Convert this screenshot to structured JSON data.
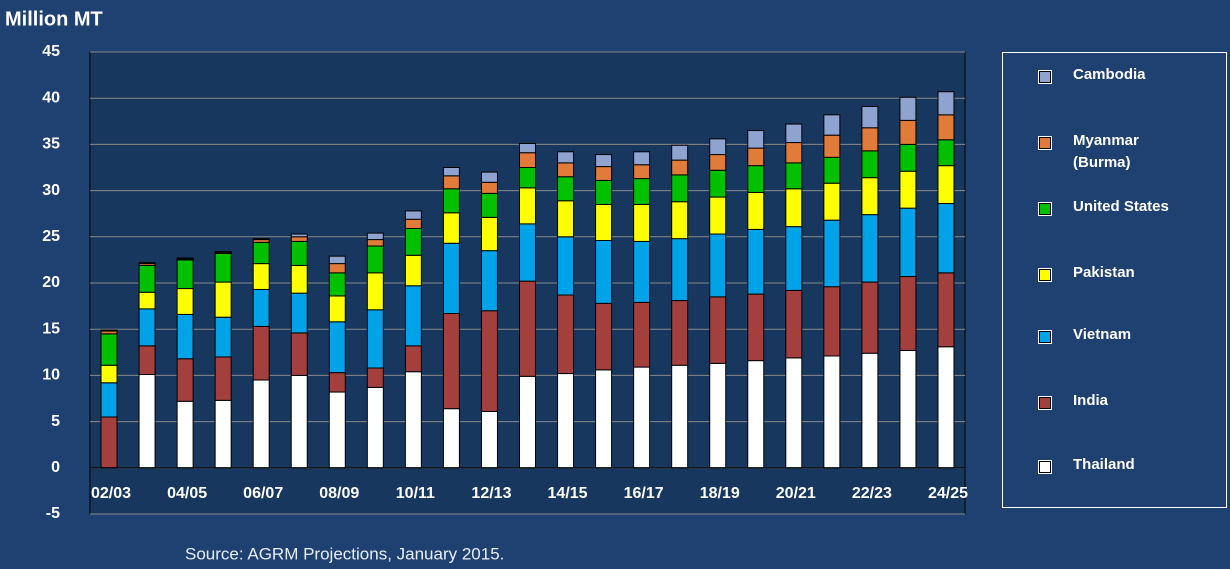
{
  "chart_data": {
    "type": "stacked_bar",
    "y_label": "Million MT",
    "source": "Source: AGRM Projections, January 2015.",
    "categories": [
      "02/03",
      null,
      "04/05",
      null,
      "06/07",
      null,
      "08/09",
      null,
      "10/11",
      null,
      "12/13",
      null,
      "14/15",
      null,
      "16/17",
      null,
      "18/19",
      null,
      "20/21",
      null,
      "22/23",
      null,
      "24/25"
    ],
    "series": [
      {
        "name": "Thailand",
        "color": "#ffffff",
        "values": [
          0,
          10.1,
          7.2,
          7.3,
          9.5,
          10.0,
          8.2,
          8.7,
          10.4,
          6.4,
          6.1,
          9.9,
          10.2,
          10.6,
          10.9,
          11.1,
          11.3,
          11.6,
          11.9,
          12.1,
          12.4,
          12.7,
          13.1
        ]
      },
      {
        "name": "India",
        "color": "#a3403d",
        "values": [
          5.5,
          3.1,
          4.6,
          4.7,
          5.8,
          4.6,
          2.1,
          2.1,
          2.8,
          10.3,
          10.9,
          10.3,
          8.5,
          7.2,
          7.0,
          7.0,
          7.2,
          7.2,
          7.3,
          7.5,
          7.7,
          8.0,
          8.0
        ]
      },
      {
        "name": "Vietnam",
        "color": "#00a2e8",
        "values": [
          3.7,
          4.0,
          4.8,
          4.3,
          4.0,
          4.3,
          5.5,
          6.3,
          6.5,
          7.6,
          6.5,
          6.2,
          6.3,
          6.8,
          6.6,
          6.7,
          6.8,
          7.0,
          6.9,
          7.2,
          7.3,
          7.4,
          7.5
        ]
      },
      {
        "name": "Pakistan",
        "color": "#ffff00",
        "values": [
          1.9,
          1.8,
          2.8,
          3.8,
          2.8,
          3.0,
          2.8,
          4.0,
          3.3,
          3.3,
          3.6,
          3.9,
          3.9,
          3.9,
          4.0,
          4.0,
          4.0,
          4.0,
          4.1,
          4.0,
          4.0,
          4.0,
          4.1
        ]
      },
      {
        "name": "United States",
        "color": "#00c000",
        "values": [
          3.4,
          2.9,
          3.1,
          3.1,
          2.3,
          2.6,
          2.5,
          2.9,
          2.9,
          2.6,
          2.6,
          2.2,
          2.6,
          2.6,
          2.8,
          2.9,
          2.9,
          2.9,
          2.8,
          2.8,
          2.9,
          2.9,
          2.8
        ]
      },
      {
        "name": "Myanmar (Burma)",
        "color": "#e07b39",
        "values": [
          0.3,
          0.2,
          0.1,
          0.1,
          0.3,
          0.5,
          1.0,
          0.7,
          1.0,
          1.4,
          1.2,
          1.6,
          1.5,
          1.5,
          1.5,
          1.6,
          1.7,
          1.9,
          2.2,
          2.4,
          2.5,
          2.6,
          2.7
        ]
      },
      {
        "name": "Cambodia",
        "color": "#8fa3d1",
        "values": [
          0.1,
          0.1,
          0.1,
          0.1,
          0.1,
          0.3,
          0.8,
          0.7,
          0.9,
          0.9,
          1.1,
          1.0,
          1.2,
          1.3,
          1.4,
          1.6,
          1.7,
          1.9,
          2.0,
          2.2,
          2.3,
          2.5,
          2.5
        ]
      }
    ],
    "ylim": [
      -5,
      45
    ],
    "yticks": [
      -5,
      0,
      5,
      10,
      15,
      20,
      25,
      30,
      35,
      40,
      45
    ],
    "grid": true,
    "legend": "right"
  }
}
